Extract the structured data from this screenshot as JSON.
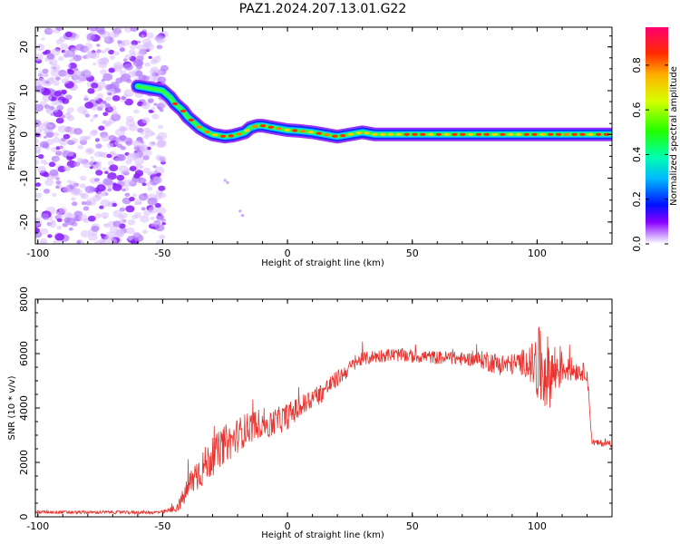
{
  "figure": {
    "title": "PAZ1.2024.207.13.01.G22"
  },
  "chart_data": [
    {
      "type": "heatmap",
      "title": "PAZ1.2024.207.13.01.G22",
      "xlabel": "Height of straight line (km)",
      "ylabel": "Frequency (Hz)",
      "xlim": [
        -101,
        130
      ],
      "ylim": [
        -25,
        24.5
      ],
      "x_ticks": [
        -100,
        -50,
        0,
        50,
        100
      ],
      "x_tick_labels": [
        "-100",
        "-50",
        "0",
        "50",
        "100"
      ],
      "y_ticks": [
        -20,
        -10,
        0,
        10,
        20
      ],
      "y_tick_labels": [
        "-20",
        "-10",
        "0",
        "10",
        "20"
      ],
      "colorbar": {
        "label": "Normalized spectral amplitude",
        "ticks": [
          0.0,
          0.2,
          0.4,
          0.6,
          0.8
        ],
        "tick_labels": [
          "0.0",
          "0.2",
          "0.4",
          "0.6",
          "0.8"
        ],
        "range": [
          0,
          0.97
        ],
        "colormap": "gist_rainbow_r (white at 0)"
      },
      "noise_region_x": [
        -101,
        -49
      ],
      "frequency_trace": {
        "x": [
          -60,
          -55,
          -50,
          -47,
          -45,
          -42,
          -40,
          -37,
          -35,
          -32,
          -30,
          -27,
          -25,
          -22,
          -20,
          -17,
          -15,
          -12,
          -10,
          -7,
          -5,
          0,
          5,
          10,
          15,
          20,
          25,
          30,
          35,
          40,
          50,
          60,
          70,
          80,
          90,
          100,
          110,
          120,
          130
        ],
        "y": [
          11,
          10.5,
          10,
          8.5,
          7,
          5.5,
          4,
          2.5,
          1.5,
          0.5,
          0,
          -0.3,
          -0.5,
          -0.3,
          0,
          0.5,
          1.5,
          2,
          2,
          1.7,
          1.5,
          1,
          0.8,
          0.5,
          0,
          -0.5,
          0,
          0.5,
          0,
          0,
          0,
          0,
          0,
          0,
          0,
          0,
          0,
          0,
          0
        ]
      },
      "grid": false
    },
    {
      "type": "line",
      "xlabel": "Height of straight line (km)",
      "ylabel": "SNR (10 * v/v)",
      "xlim": [
        -101,
        130
      ],
      "ylim": [
        0,
        8000
      ],
      "x_ticks": [
        -100,
        -50,
        0,
        50,
        100
      ],
      "x_tick_labels": [
        "-100",
        "-50",
        "0",
        "50",
        "100"
      ],
      "y_ticks": [
        0,
        2000,
        4000,
        6000,
        8000
      ],
      "y_tick_labels": [
        "0",
        "2000",
        "4000",
        "6000",
        "8000"
      ],
      "series": [
        {
          "color": "#e8322d",
          "x": [
            -101,
            -90,
            -80,
            -70,
            -60,
            -50,
            -45,
            -43,
            -40,
            -38,
            -35,
            -32,
            -30,
            -27,
            -25,
            -22,
            -20,
            -17,
            -15,
            -12,
            -10,
            -7,
            -5,
            -2,
            0,
            3,
            5,
            8,
            10,
            13,
            15,
            18,
            20,
            23,
            25,
            28,
            30,
            33,
            35,
            40,
            45,
            50,
            55,
            60,
            65,
            70,
            75,
            80,
            85,
            90,
            95,
            98,
            100,
            102,
            105,
            108,
            110,
            115,
            120,
            122,
            125,
            130
          ],
          "y": [
            180,
            170,
            160,
            170,
            160,
            170,
            300,
            500,
            1000,
            1400,
            1700,
            2000,
            2200,
            2500,
            2700,
            2800,
            3000,
            3200,
            3300,
            3400,
            3500,
            3300,
            3500,
            3600,
            3700,
            3900,
            4000,
            4200,
            4400,
            4500,
            4700,
            4900,
            5100,
            5300,
            5500,
            5700,
            5800,
            5850,
            5900,
            5950,
            5950,
            5900,
            5900,
            5850,
            5850,
            5800,
            5800,
            5750,
            5600,
            5600,
            5700,
            5600,
            5500,
            5400,
            5300,
            5400,
            5500,
            5400,
            5300,
            2750,
            2700,
            2700
          ],
          "variability": [
            60,
            60,
            60,
            60,
            60,
            60,
            150,
            250,
            500,
            600,
            700,
            700,
            700,
            700,
            700,
            650,
            650,
            600,
            600,
            550,
            550,
            500,
            500,
            500,
            500,
            450,
            450,
            450,
            400,
            400,
            350,
            350,
            300,
            300,
            250,
            250,
            250,
            250,
            250,
            250,
            250,
            250,
            250,
            250,
            250,
            250,
            250,
            400,
            400,
            400,
            500,
            800,
            1500,
            1500,
            1300,
            1000,
            600,
            400,
            300,
            120,
            120,
            120
          ]
        }
      ],
      "grid": false
    }
  ],
  "colors": {
    "snr_line": "#e8322d",
    "noise": "#9933ff",
    "axes": "#000000"
  }
}
